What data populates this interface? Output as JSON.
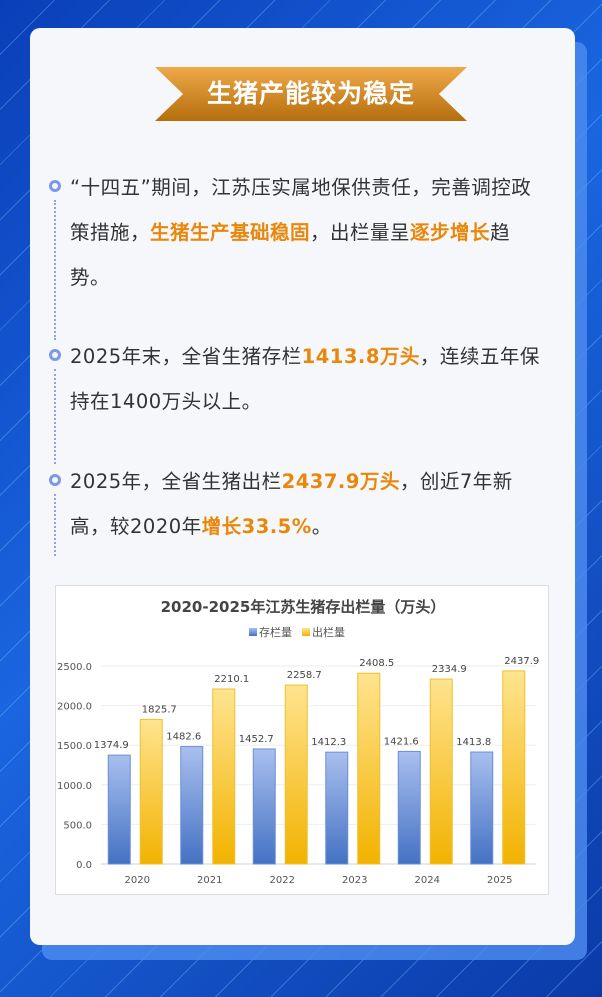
{
  "title": "生猪产能较为稳定",
  "paragraphs": [
    [
      {
        "t": "“十四五”期间，江苏压实属地保供责任，完善调控政策措施，",
        "h": false
      },
      {
        "t": "生猪生产基础稳固",
        "h": true
      },
      {
        "t": "，出栏量呈",
        "h": false
      },
      {
        "t": "逐步增长",
        "h": true
      },
      {
        "t": "趋势。",
        "h": false
      }
    ],
    [
      {
        "t": "2025年末，全省生猪存栏",
        "h": false
      },
      {
        "t": "1413.8万头",
        "h": true
      },
      {
        "t": "，连续五年保持在1400万头以上。",
        "h": false
      }
    ],
    [
      {
        "t": "2025年，全省生猪出栏",
        "h": false
      },
      {
        "t": "2437.9万头",
        "h": true
      },
      {
        "t": "，创近7年新高，较2020年",
        "h": false
      },
      {
        "t": "增长33.5%",
        "h": true
      },
      {
        "t": "。",
        "h": false
      }
    ]
  ],
  "colors": {
    "accent": "#e8870a",
    "stock": "#4472c4",
    "slaughter": "#f5b800"
  },
  "chart_data": {
    "type": "bar",
    "title": "2020-2025年江苏生猪存出栏量（万头）",
    "categories": [
      "2020",
      "2021",
      "2022",
      "2023",
      "2024",
      "2025"
    ],
    "series": [
      {
        "name": "存栏量",
        "values": [
          1374.9,
          1482.6,
          1452.7,
          1412.3,
          1421.6,
          1413.8
        ]
      },
      {
        "name": "出栏量",
        "values": [
          1825.7,
          2210.1,
          2258.7,
          2408.5,
          2334.9,
          2437.9
        ]
      }
    ],
    "yticks": [
      "0.0",
      "500.0",
      "1000.0",
      "1500.0",
      "2000.0",
      "2500.0"
    ],
    "ylim": [
      0,
      2500
    ],
    "grid": true,
    "legend": "top"
  }
}
